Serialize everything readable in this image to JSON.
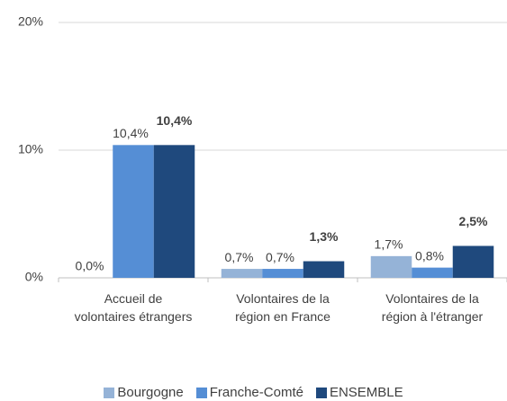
{
  "chart_data": {
    "type": "bar",
    "categories": [
      "Accueil de volontaires étrangers",
      "Volontaires de la région en France",
      "Volontaires de la région à l'étranger"
    ],
    "series": [
      {
        "name": "Bourgogne",
        "color": "#95b3d7",
        "values": [
          0.0,
          0.7,
          1.7
        ],
        "value_labels": [
          "0,0%",
          "0,7%",
          "1,7%"
        ]
      },
      {
        "name": "Franche-Comté",
        "color": "#558ed5",
        "values": [
          10.4,
          0.7,
          0.8
        ],
        "value_labels": [
          "10,4%",
          "0,7%",
          "0,8%"
        ]
      },
      {
        "name": "ENSEMBLE",
        "color": "#1f497d",
        "values": [
          10.4,
          1.3,
          2.5
        ],
        "value_labels": [
          "10,4%",
          "1,3%",
          "2,5%"
        ]
      }
    ],
    "ylim": [
      0,
      20
    ],
    "yticks": [
      {
        "value": 0,
        "label": "0%"
      },
      {
        "value": 10,
        "label": "10%"
      },
      {
        "value": 20,
        "label": "20%"
      }
    ],
    "grid": true,
    "legend": "bottom"
  }
}
